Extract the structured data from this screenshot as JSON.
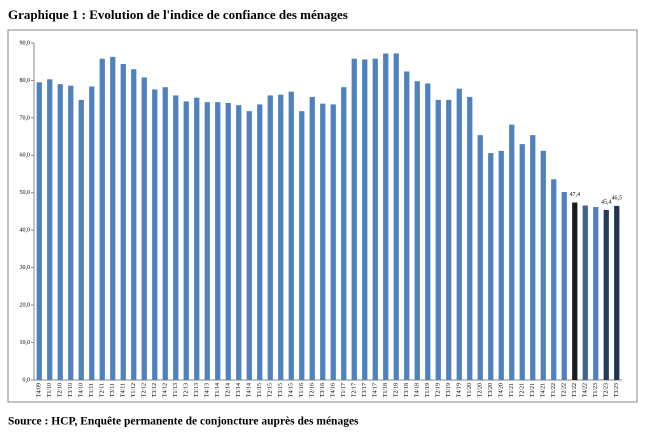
{
  "chart_data": {
    "type": "bar",
    "title": "Graphique 1 : Evolution de l'indice de confiance des ménages",
    "source": "Source : HCP, Enquête permanente de conjoncture auprès des ménages",
    "categories": [
      "T4/09",
      "T1/10",
      "T2/10",
      "T3/10",
      "T4/10",
      "T1/11",
      "T2/11",
      "T3/11",
      "T4/11",
      "T1/12",
      "T2/12",
      "T3/12",
      "T4/12",
      "T1/13",
      "T2/13",
      "T3/13",
      "T4/13",
      "T1/14",
      "T2/14",
      "T3/14",
      "T4/14",
      "T1/15",
      "T2/15",
      "T3/15",
      "T4/15",
      "T1/16",
      "T2/16",
      "T3/16",
      "T4/16",
      "T1/17",
      "T2/17",
      "T3/17",
      "T4/17",
      "T1/18",
      "T2/18",
      "T3/18",
      "T4/18",
      "T1/19",
      "T2/19",
      "T3/19",
      "T4/19",
      "T1/20",
      "T2/20",
      "T3/20",
      "T4/20",
      "T1/21",
      "T2/21",
      "T3/21",
      "T4/21",
      "T1/22",
      "T2/22",
      "T3/22",
      "T4/22",
      "T1/23",
      "T2/23",
      "T3/23"
    ],
    "values": [
      79.5,
      80.3,
      79.0,
      78.6,
      74.8,
      78.4,
      85.8,
      86.3,
      84.4,
      83.0,
      80.8,
      77.6,
      78.2,
      76.0,
      74.4,
      75.4,
      74.2,
      74.2,
      74.0,
      73.4,
      71.8,
      73.6,
      76.0,
      76.2,
      77.0,
      71.8,
      75.6,
      73.8,
      73.6,
      78.2,
      85.8,
      85.6,
      85.8,
      87.2,
      87.2,
      82.4,
      79.8,
      79.2,
      74.8,
      74.8,
      77.8,
      75.6,
      65.4,
      60.6,
      61.2,
      68.2,
      63.0,
      65.4,
      61.2,
      53.6,
      50.2,
      47.4,
      46.6,
      46.2,
      45.4,
      46.5
    ],
    "value_labels": [
      null,
      null,
      null,
      null,
      null,
      null,
      null,
      null,
      null,
      null,
      null,
      null,
      null,
      null,
      null,
      null,
      null,
      null,
      null,
      null,
      null,
      null,
      null,
      null,
      null,
      null,
      null,
      null,
      null,
      null,
      null,
      null,
      null,
      null,
      null,
      null,
      null,
      null,
      null,
      null,
      null,
      null,
      null,
      null,
      null,
      null,
      null,
      null,
      null,
      null,
      null,
      "47,4",
      null,
      null,
      "45,4",
      "46,5"
    ],
    "color": "#4f81bd",
    "colors": [
      null,
      null,
      null,
      null,
      null,
      null,
      null,
      null,
      null,
      null,
      null,
      null,
      null,
      null,
      null,
      null,
      null,
      null,
      null,
      null,
      null,
      null,
      null,
      null,
      null,
      null,
      null,
      null,
      null,
      null,
      null,
      null,
      null,
      null,
      null,
      null,
      null,
      null,
      null,
      null,
      null,
      null,
      null,
      null,
      null,
      null,
      null,
      null,
      null,
      null,
      null,
      "#1a1a1a",
      "#3f6591",
      "#4f81bd",
      "#243c5c",
      "#1f3553"
    ],
    "ylim": [
      0,
      90
    ],
    "yticks": [
      {
        "value": 0,
        "label": "0,0"
      },
      {
        "value": 10,
        "label": "10,0"
      },
      {
        "value": 20,
        "label": "20,0"
      },
      {
        "value": 30,
        "label": "30,0"
      },
      {
        "value": 40,
        "label": "40,0"
      },
      {
        "value": 50,
        "label": "50,0"
      },
      {
        "value": 60,
        "label": "60,0"
      },
      {
        "value": 70,
        "label": "70,0"
      },
      {
        "value": 80,
        "label": "80,0"
      },
      {
        "value": 90,
        "label": "90,0"
      }
    ],
    "grid": false
  }
}
